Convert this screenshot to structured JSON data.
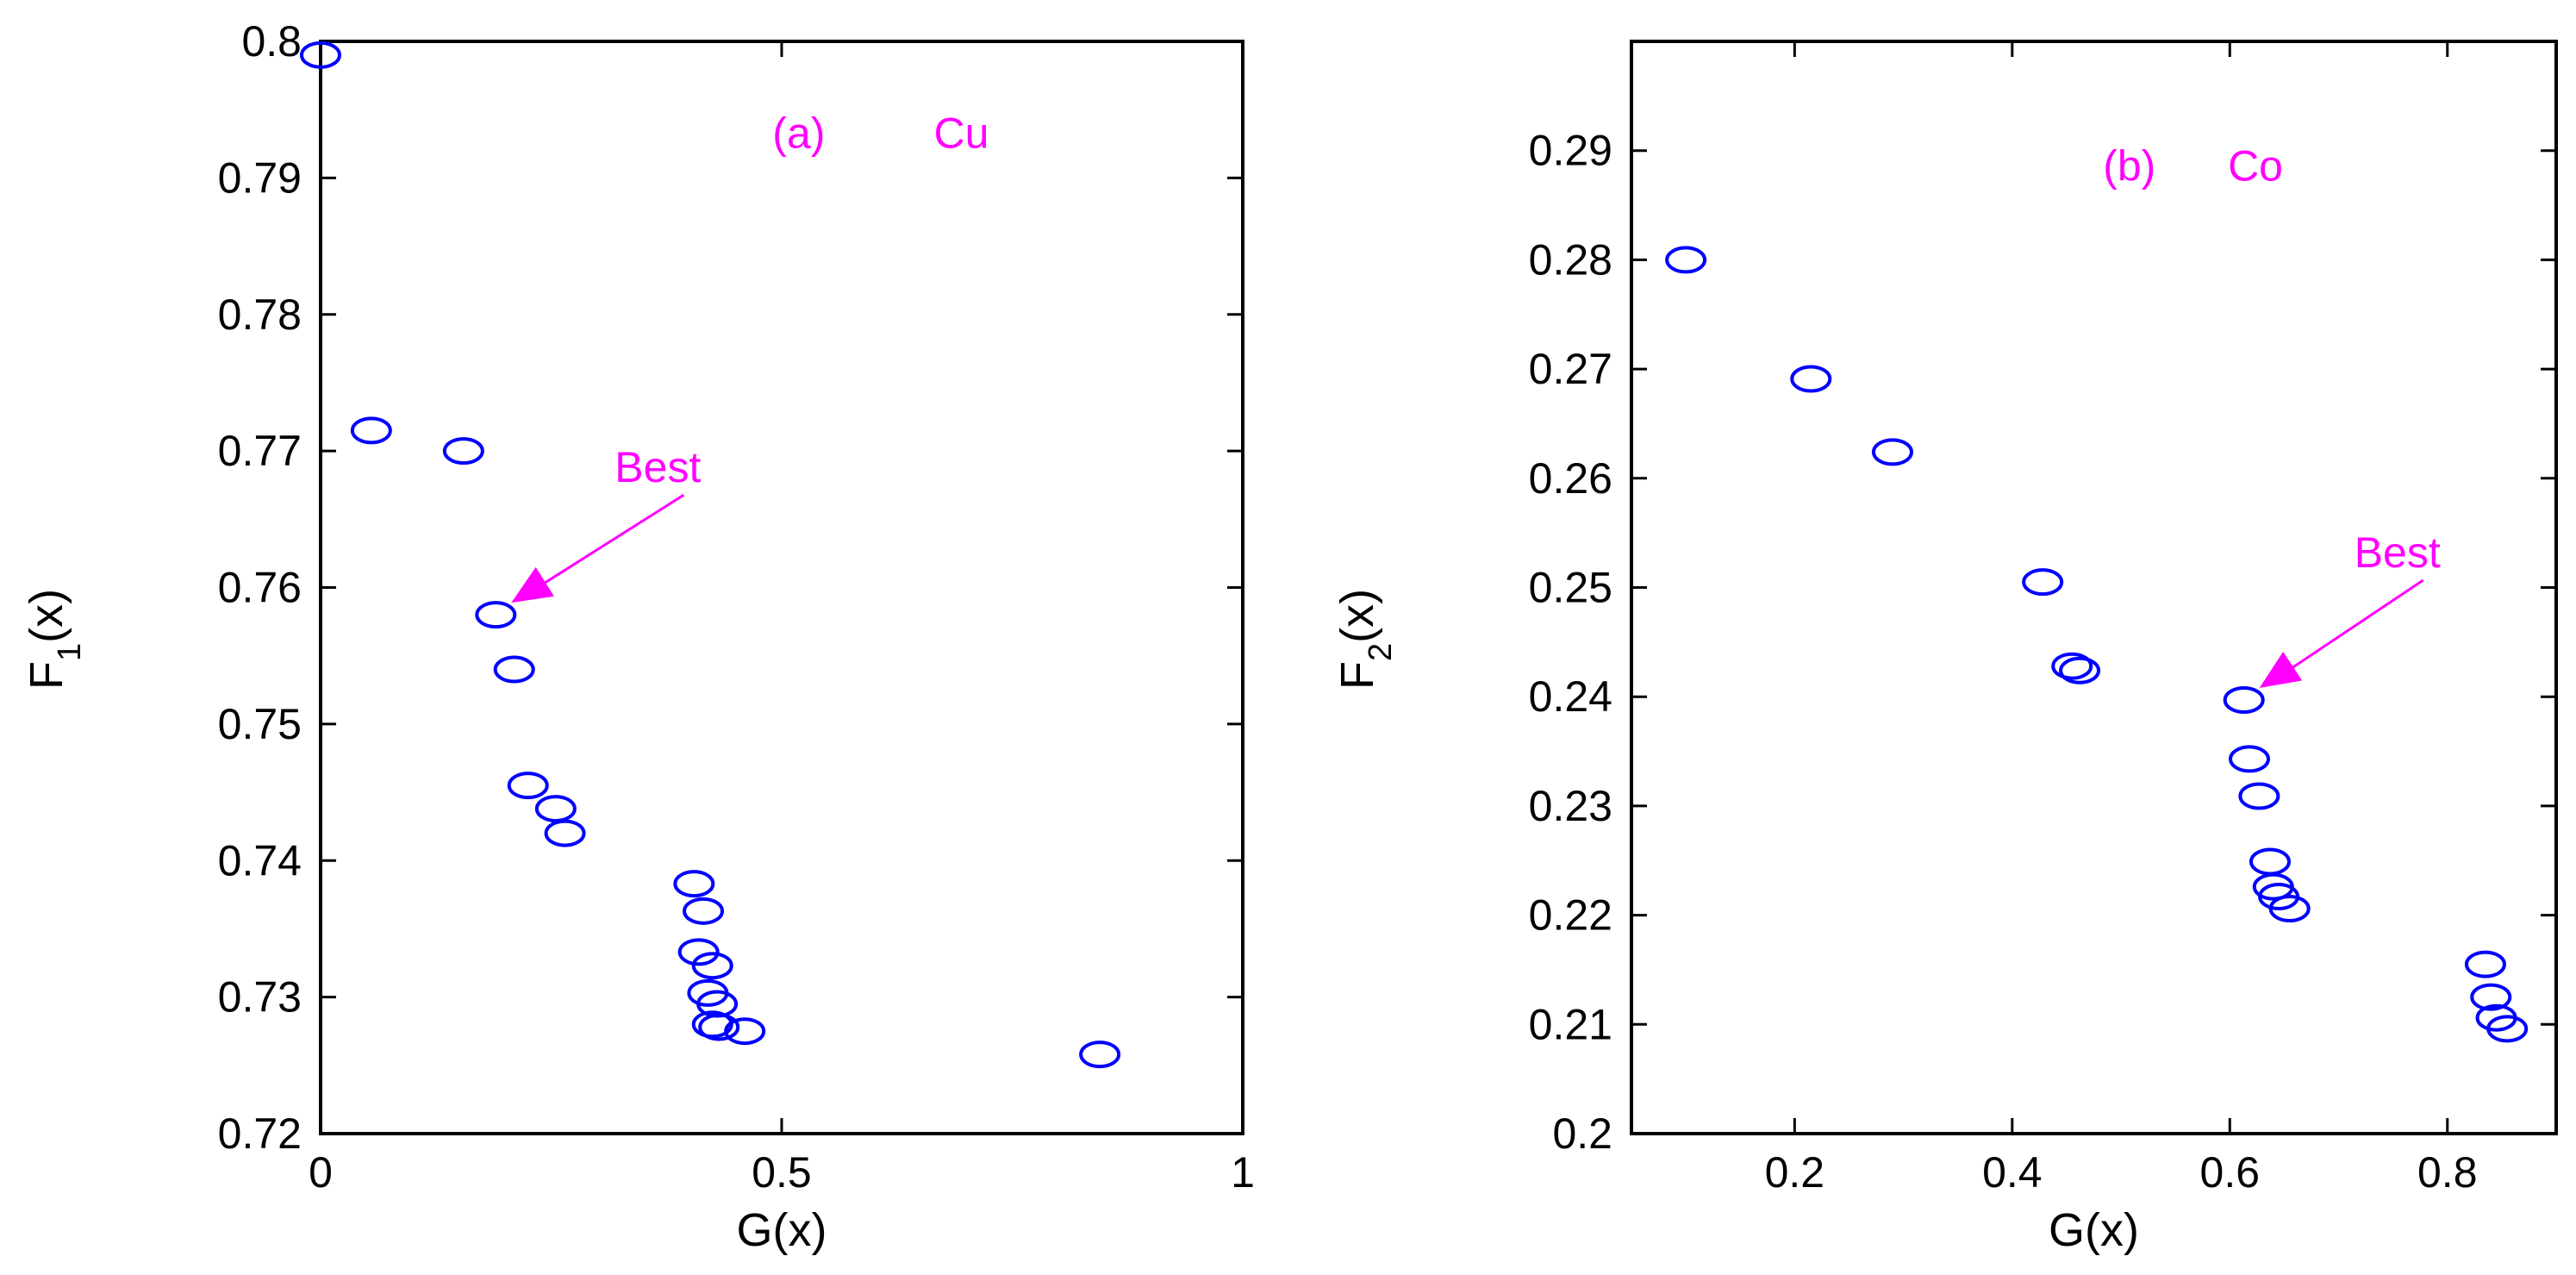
{
  "chart_data": [
    {
      "type": "scatter",
      "panel_label": "(a)",
      "element": "Cu",
      "xlabel": "G(x)",
      "ylabel_main": "F",
      "ylabel_sub": "1",
      "ylabel_tail": "(x)",
      "xlim": [
        0,
        1
      ],
      "ylim": [
        0.72,
        0.8
      ],
      "xticks": [
        "0",
        "0.5",
        "1"
      ],
      "yticks": [
        "0.72",
        "0.73",
        "0.74",
        "0.75",
        "0.76",
        "0.77",
        "0.78",
        "0.79",
        "0.8"
      ],
      "annotation": {
        "text": "Best",
        "x": 0.19,
        "y": 0.758
      },
      "marker_color": "#0000ff",
      "annotation_color": "#ff00ff",
      "grid": false,
      "points": [
        {
          "x": 0.0,
          "y": 0.799
        },
        {
          "x": 0.055,
          "y": 0.7715
        },
        {
          "x": 0.155,
          "y": 0.77
        },
        {
          "x": 0.19,
          "y": 0.758
        },
        {
          "x": 0.21,
          "y": 0.754
        },
        {
          "x": 0.225,
          "y": 0.7455
        },
        {
          "x": 0.255,
          "y": 0.7438
        },
        {
          "x": 0.265,
          "y": 0.742
        },
        {
          "x": 0.405,
          "y": 0.7383
        },
        {
          "x": 0.415,
          "y": 0.7363
        },
        {
          "x": 0.41,
          "y": 0.7333
        },
        {
          "x": 0.425,
          "y": 0.7323
        },
        {
          "x": 0.42,
          "y": 0.7303
        },
        {
          "x": 0.43,
          "y": 0.7295
        },
        {
          "x": 0.425,
          "y": 0.728
        },
        {
          "x": 0.432,
          "y": 0.7278
        },
        {
          "x": 0.46,
          "y": 0.7275
        },
        {
          "x": 0.845,
          "y": 0.7258
        }
      ]
    },
    {
      "type": "scatter",
      "panel_label": "(b)",
      "element": "Co",
      "xlabel": "G(x)",
      "ylabel_main": "F",
      "ylabel_sub": "2",
      "ylabel_tail": "(x)",
      "xlim": [
        0.05,
        0.9
      ],
      "ylim": [
        0.2,
        0.3
      ],
      "xticks": [
        "0.2",
        "0.4",
        "0.6",
        "0.8"
      ],
      "yticks": [
        "0.2",
        "0.21",
        "0.22",
        "0.23",
        "0.24",
        "0.25",
        "0.26",
        "0.27",
        "0.28",
        "0.29"
      ],
      "annotation": {
        "text": "Best",
        "x": 0.613,
        "y": 0.2397
      },
      "marker_color": "#0000ff",
      "annotation_color": "#ff00ff",
      "grid": false,
      "points": [
        {
          "x": 0.1,
          "y": 0.28
        },
        {
          "x": 0.215,
          "y": 0.2691
        },
        {
          "x": 0.29,
          "y": 0.2624
        },
        {
          "x": 0.428,
          "y": 0.2505
        },
        {
          "x": 0.455,
          "y": 0.2428
        },
        {
          "x": 0.462,
          "y": 0.2424
        },
        {
          "x": 0.613,
          "y": 0.2397
        },
        {
          "x": 0.618,
          "y": 0.2343
        },
        {
          "x": 0.627,
          "y": 0.2309
        },
        {
          "x": 0.637,
          "y": 0.2249
        },
        {
          "x": 0.64,
          "y": 0.2226
        },
        {
          "x": 0.645,
          "y": 0.2217
        },
        {
          "x": 0.655,
          "y": 0.2206
        },
        {
          "x": 0.835,
          "y": 0.2155
        },
        {
          "x": 0.84,
          "y": 0.2125
        },
        {
          "x": 0.845,
          "y": 0.2106
        },
        {
          "x": 0.855,
          "y": 0.2096
        }
      ]
    }
  ]
}
